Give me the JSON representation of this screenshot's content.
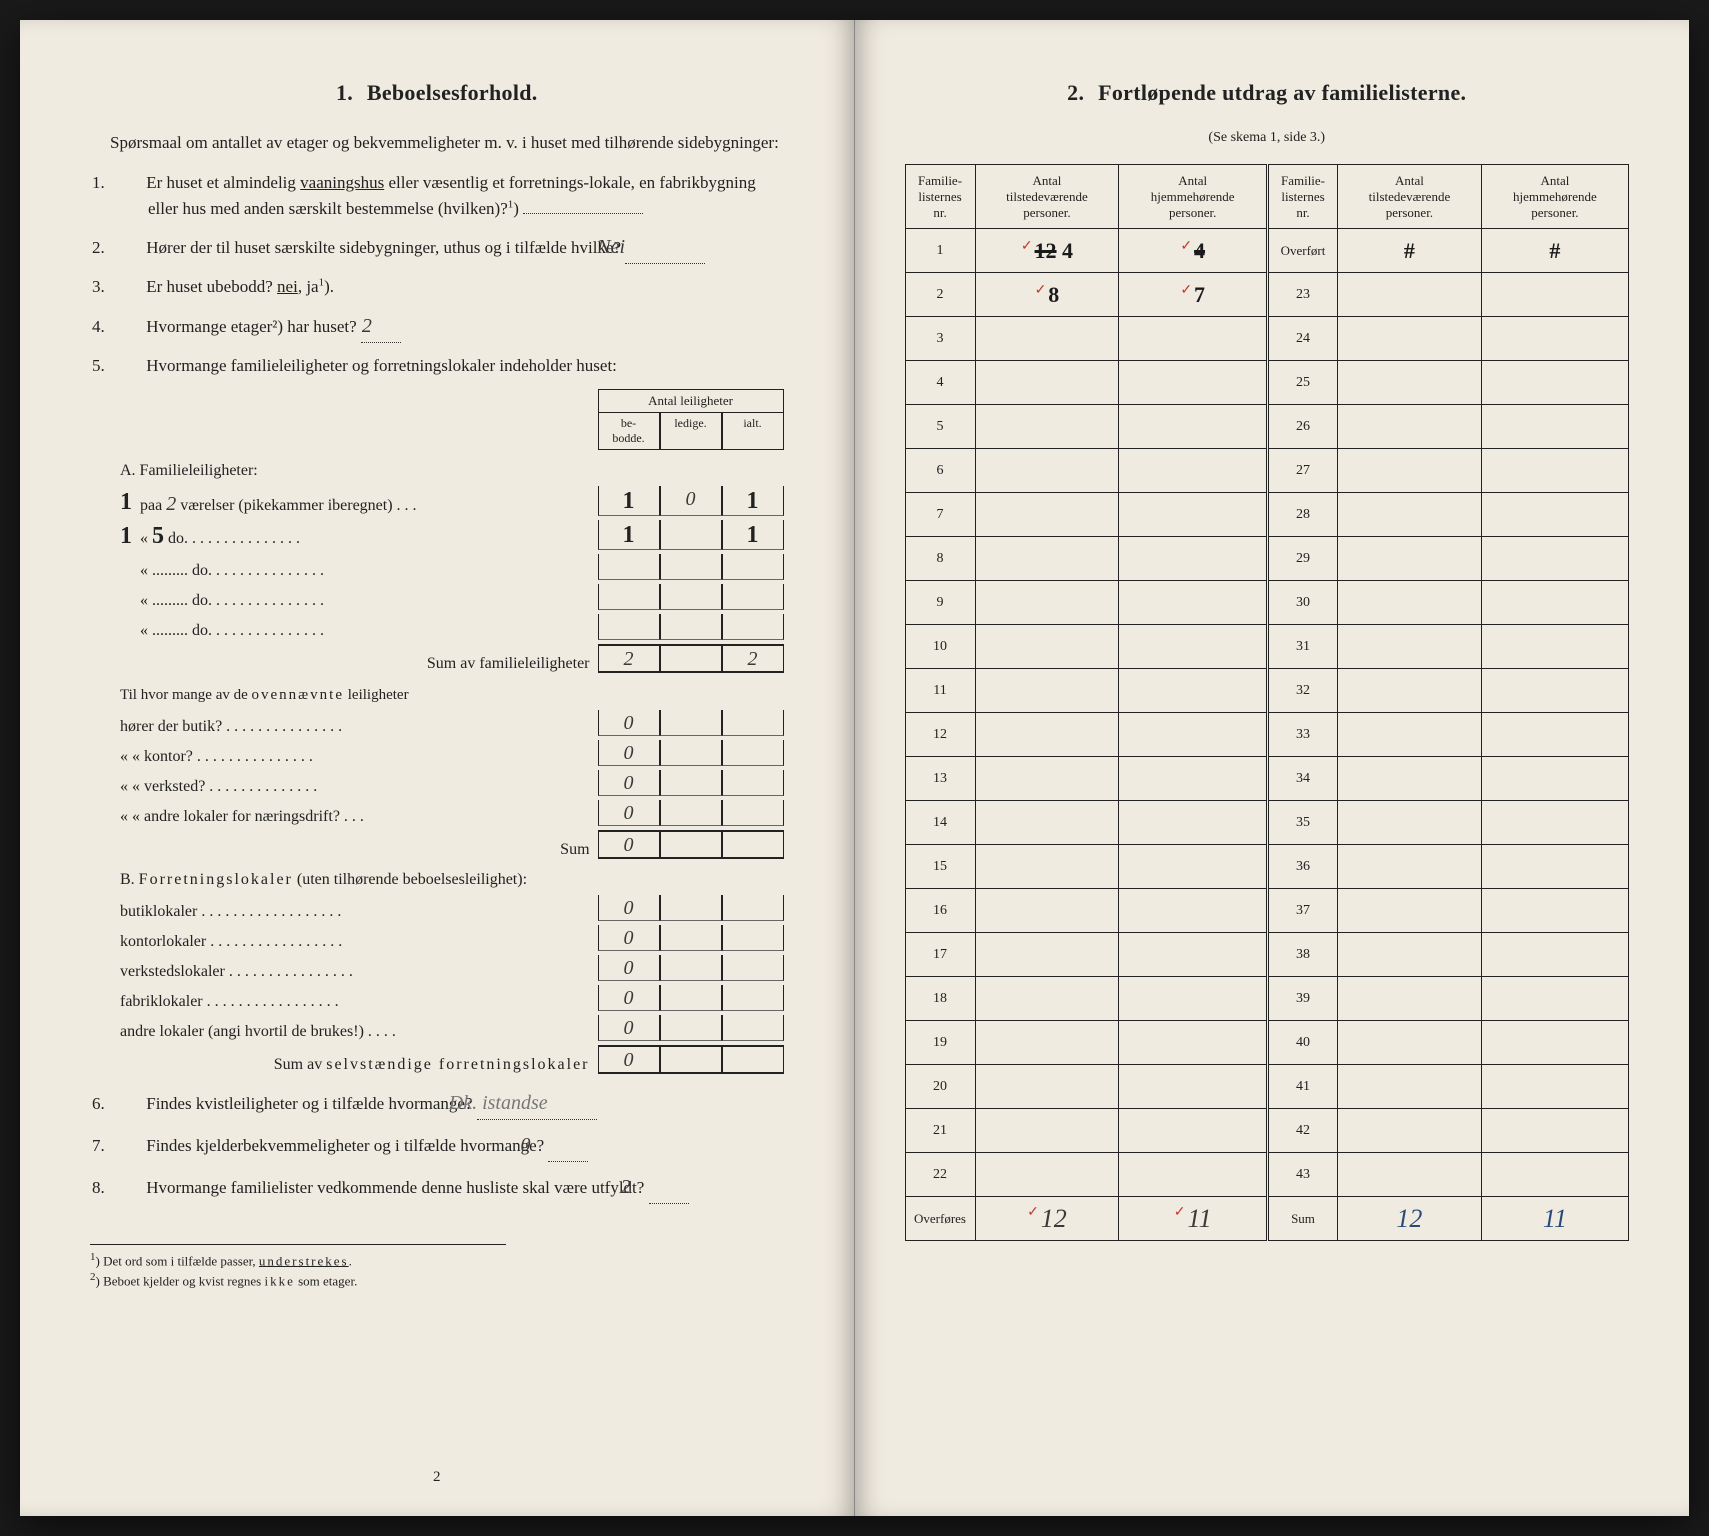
{
  "colors": {
    "page_bg": "#f0ebe0",
    "ink": "#222222",
    "handwriting": "#3a3a3a",
    "red_mark": "#c0392b",
    "blue_ink": "#2a4a7a",
    "border": "#222222"
  },
  "left": {
    "title_num": "1.",
    "title": "Beboelsesforhold.",
    "intro": "Spørsmaal om antallet av etager og bekvemmeligheter m. v. i huset med tilhørende sidebygninger:",
    "q1_num": "1.",
    "q1": "Er huset et almindelig vaaningshus eller væsentlig et forretnings-lokale, en fabrikbygning eller hus med anden særskilt bestemmelse (hvilken)?",
    "q1_ans": "",
    "q2_num": "2.",
    "q2": "Hører der til huset særskilte sidebygninger, uthus og i tilfælde hvilke?",
    "q2_ans": "Nei",
    "q3_num": "3.",
    "q3_a": "Er huset ubebodd?  ",
    "q3_nei": "nei",
    "q3_ja": ",  ja",
    "q4_num": "4.",
    "q4": "Hvormange etager²) har huset?",
    "q4_ans": "2",
    "q5_num": "5.",
    "q5": "Hvormange familieleiligheter og forretningslokaler indeholder huset:",
    "leil_header": "Antal leiligheter",
    "leil_sub1": "be-\nbodde.",
    "leil_sub2": "ledige.",
    "leil_sub3": "ialt.",
    "secA": "A. Familieleiligheter:",
    "rowA1_prefix": "1",
    "rowA1_label": "paa 2 værelser (pikekammer iberegnet) . . .",
    "rowA1": {
      "bebodde": "1",
      "ledige": "0",
      "ialt": "1"
    },
    "rowA2_prefix": "1",
    "rowA2_label": "«  5  do.  . . . . . . . . . . . . . .",
    "rowA2": {
      "bebodde": "1",
      "ledige": "",
      "ialt": "1"
    },
    "rowA3_label": "«  .........  do.  . . . . . . . . . . . . . .",
    "rowA4_label": "«  .........  do.  . . . . . . . . . . . . . .",
    "rowA5_label": "«  .........  do.  . . . . . . . . . . . . . .",
    "sumA_label": "Sum av familieleiligheter",
    "sumA": {
      "bebodde": "2",
      "ledige": "",
      "ialt": "2"
    },
    "til_intro": "Til hvor mange av de ovennævnte leiligheter",
    "til1": "hører der butik? . . . . . . . . . . . . . . .",
    "til1_v": "0",
    "til2": "«     «   kontor? . . . . . . . . . . . . . . .",
    "til2_v": "0",
    "til3": "«     «   verksted? . . . . . . . . . . . . . .",
    "til3_v": "0",
    "til4": "«     «   andre lokaler for næringsdrift? . . .",
    "til4_v": "0",
    "til_sum": "Sum",
    "til_sum_v": "0",
    "secB": "B. Forretningslokaler (uten tilhørende beboelsesleilighet):",
    "b1": "butiklokaler . . . . . . . . . . . . . . . . . .",
    "b1_v": "0",
    "b2": "kontorlokaler . . . . . . . . . . . . . . . . .",
    "b2_v": "0",
    "b3": "verkstedslokaler . . . . . . . . . . . . . . . .",
    "b3_v": "0",
    "b4": "fabriklokaler . . . . . . . . . . . . . . . . .",
    "b4_v": "0",
    "b5": "andre lokaler (angi hvortil de brukes!) . . . .",
    "b5_v": "0",
    "sumB_label": "Sum av selvstændige forretningslokaler",
    "sumB_v": "0",
    "q6_num": "6.",
    "q6": "Findes kvistleiligheter og i tilfælde hvormange?",
    "q6_ans": "Dk. istandse",
    "q7_num": "7.",
    "q7": "Findes kjelderbekvemmeligheter og i tilfælde hvormange?",
    "q7_ans": "0",
    "q8_num": "8.",
    "q8": "Hvormange familielister vedkommende denne husliste skal være utfyldt?",
    "q8_ans": "2",
    "foot1": "¹) Det ord som i tilfælde passer, understrekes.",
    "foot2": "²) Beboet kjelder og kvist regnes ikke som etager.",
    "pagenum": "2"
  },
  "right": {
    "title_num": "2.",
    "title": "Fortløpende utdrag av familielisterne.",
    "subtitle": "(Se skema 1, side 3.)",
    "h1": "Familie-\nlisternes\nnr.",
    "h2": "Antal\ntilstedeværende\npersoner.",
    "h3": "Antal\nhjemmehørende\npersoner.",
    "overfort": "Overført",
    "overfort_v1": "#",
    "overfort_v2": "#",
    "rows_left": [
      {
        "n": "1",
        "a": "12 4",
        "b": "4"
      },
      {
        "n": "2",
        "a": "8",
        "b": "7"
      },
      {
        "n": "3",
        "a": "",
        "b": ""
      },
      {
        "n": "4",
        "a": "",
        "b": ""
      },
      {
        "n": "5",
        "a": "",
        "b": ""
      },
      {
        "n": "6",
        "a": "",
        "b": ""
      },
      {
        "n": "7",
        "a": "",
        "b": ""
      },
      {
        "n": "8",
        "a": "",
        "b": ""
      },
      {
        "n": "9",
        "a": "",
        "b": ""
      },
      {
        "n": "10",
        "a": "",
        "b": ""
      },
      {
        "n": "11",
        "a": "",
        "b": ""
      },
      {
        "n": "12",
        "a": "",
        "b": ""
      },
      {
        "n": "13",
        "a": "",
        "b": ""
      },
      {
        "n": "14",
        "a": "",
        "b": ""
      },
      {
        "n": "15",
        "a": "",
        "b": ""
      },
      {
        "n": "16",
        "a": "",
        "b": ""
      },
      {
        "n": "17",
        "a": "",
        "b": ""
      },
      {
        "n": "18",
        "a": "",
        "b": ""
      },
      {
        "n": "19",
        "a": "",
        "b": ""
      },
      {
        "n": "20",
        "a": "",
        "b": ""
      },
      {
        "n": "21",
        "a": "",
        "b": ""
      },
      {
        "n": "22",
        "a": "",
        "b": ""
      }
    ],
    "rows_right_nums": [
      "23",
      "24",
      "25",
      "26",
      "27",
      "28",
      "29",
      "30",
      "31",
      "32",
      "33",
      "34",
      "35",
      "36",
      "37",
      "38",
      "39",
      "40",
      "41",
      "42",
      "43"
    ],
    "overfores": "Overføres",
    "overfores_a": "12",
    "overfores_b": "11",
    "sum": "Sum",
    "sum_a": "12",
    "sum_b": "11"
  }
}
